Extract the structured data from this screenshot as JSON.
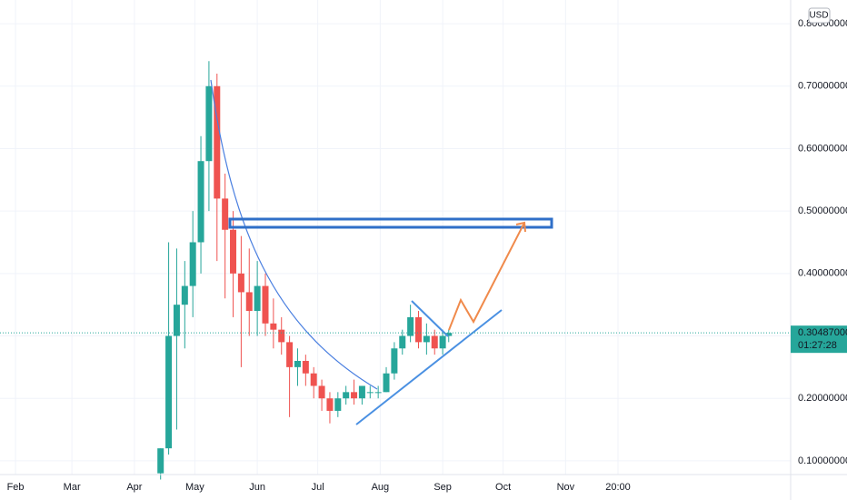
{
  "chart_data": {
    "type": "candlestick",
    "currency": "USD",
    "x": [
      104,
      108,
      112,
      116,
      120,
      124,
      128,
      132,
      136,
      140,
      144,
      148,
      152,
      156,
      160,
      164,
      168,
      172,
      176,
      180,
      184,
      188,
      192,
      196,
      200,
      204,
      208,
      212,
      216,
      220,
      224,
      228,
      232,
      236,
      240,
      244,
      247
    ],
    "open": [
      0.08,
      0.12,
      0.3,
      0.35,
      0.38,
      0.45,
      0.58,
      0.7,
      0.52,
      0.47,
      0.4,
      0.37,
      0.34,
      0.38,
      0.32,
      0.31,
      0.29,
      0.25,
      0.26,
      0.24,
      0.22,
      0.2,
      0.18,
      0.2,
      0.21,
      0.2,
      0.21,
      0.21,
      0.21,
      0.24,
      0.28,
      0.3,
      0.33,
      0.29,
      0.3,
      0.28,
      0.3
    ],
    "high": [
      0.12,
      0.45,
      0.44,
      0.42,
      0.5,
      0.62,
      0.74,
      0.72,
      0.56,
      0.5,
      0.46,
      0.44,
      0.42,
      0.4,
      0.36,
      0.33,
      0.3,
      0.28,
      0.27,
      0.25,
      0.23,
      0.21,
      0.21,
      0.22,
      0.23,
      0.22,
      0.22,
      0.22,
      0.25,
      0.29,
      0.31,
      0.35,
      0.34,
      0.32,
      0.31,
      0.31,
      0.31
    ],
    "low": [
      0.07,
      0.11,
      0.15,
      0.28,
      0.33,
      0.4,
      0.5,
      0.42,
      0.36,
      0.33,
      0.25,
      0.3,
      0.3,
      0.3,
      0.28,
      0.27,
      0.17,
      0.22,
      0.22,
      0.2,
      0.18,
      0.16,
      0.17,
      0.19,
      0.19,
      0.19,
      0.2,
      0.2,
      0.21,
      0.23,
      0.27,
      0.29,
      0.28,
      0.27,
      0.27,
      0.27,
      0.29
    ],
    "close": [
      0.12,
      0.3,
      0.35,
      0.38,
      0.45,
      0.58,
      0.7,
      0.52,
      0.47,
      0.4,
      0.37,
      0.34,
      0.38,
      0.32,
      0.31,
      0.29,
      0.25,
      0.26,
      0.24,
      0.22,
      0.2,
      0.18,
      0.2,
      0.21,
      0.2,
      0.22,
      0.21,
      0.21,
      0.24,
      0.28,
      0.3,
      0.33,
      0.29,
      0.3,
      0.28,
      0.3,
      0.30487
    ],
    "up_color": "#26a69a",
    "down_color": "#ef5350",
    "last_price": 0.30487,
    "last_price_label": "0.30487000",
    "countdown": "01:27:28",
    "xlim": [
      24.3,
      416.7
    ],
    "ylim": [
      0.078,
      0.838
    ],
    "xticks": [
      {
        "value": 32,
        "label": "Feb"
      },
      {
        "value": 60,
        "label": "Mar"
      },
      {
        "value": 91,
        "label": "Apr"
      },
      {
        "value": 121,
        "label": "May"
      },
      {
        "value": 152,
        "label": "Jun"
      },
      {
        "value": 182,
        "label": "Jul"
      },
      {
        "value": 213,
        "label": "Aug"
      },
      {
        "value": 244,
        "label": "Sep"
      },
      {
        "value": 274,
        "label": "Oct"
      },
      {
        "value": 305,
        "label": "Nov"
      },
      {
        "value": 331,
        "label": "20:00"
      }
    ],
    "yticks": [
      {
        "value": 0.1,
        "label": "0.10000000"
      },
      {
        "value": 0.2,
        "label": "0.20000000"
      },
      {
        "value": 0.3,
        "label": "0.30000000"
      },
      {
        "value": 0.4,
        "label": "0.40000000"
      },
      {
        "value": 0.5,
        "label": "0.50000000"
      },
      {
        "value": 0.6,
        "label": "0.60000000"
      },
      {
        "value": 0.7,
        "label": "0.70000000"
      },
      {
        "value": 0.8,
        "label": "0.80000000"
      }
    ],
    "grid": true
  }
}
